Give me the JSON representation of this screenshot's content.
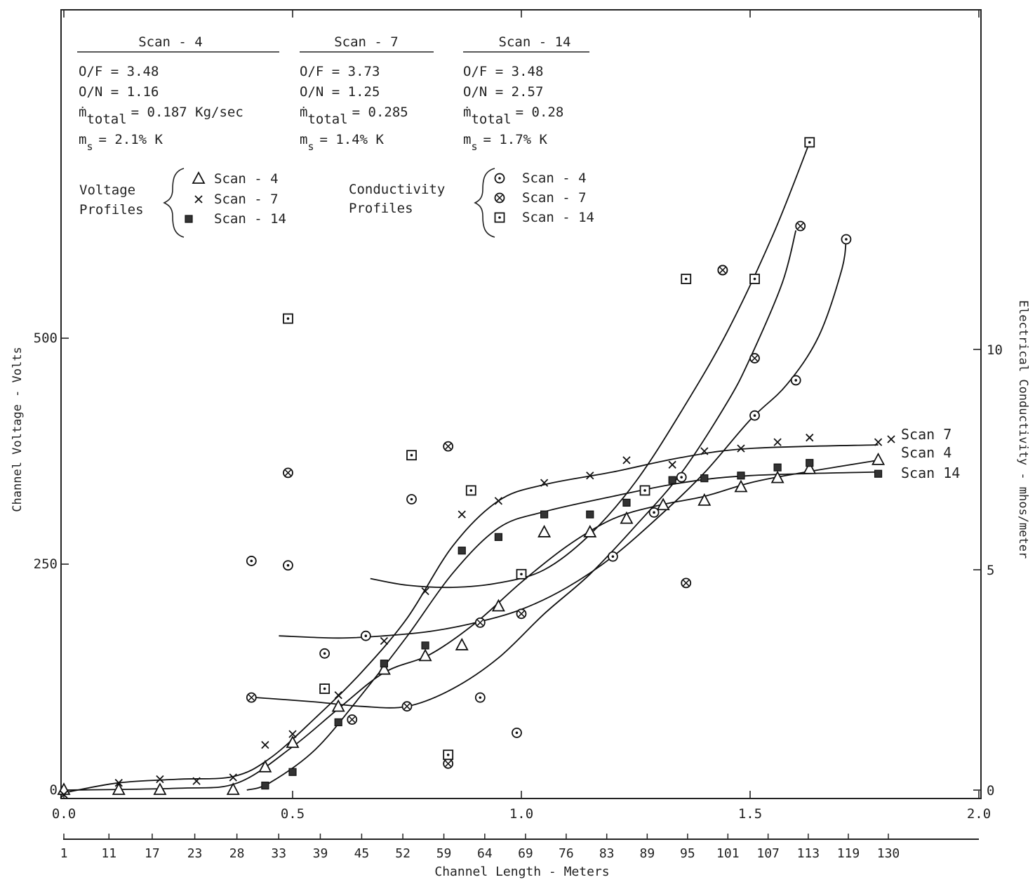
{
  "chart_data": {
    "type": "scatter",
    "xlabel": "Channel Length - Meters",
    "ylabel_left": "Channel Voltage - Volts",
    "ylabel_right": "Electrical Conductivity - mhos/meter",
    "xlim": [
      0.0,
      2.0
    ],
    "ylim_left": [
      0,
      750
    ],
    "ylim_right": [
      0,
      15
    ],
    "x_ticks": [
      "0.0",
      "0.5",
      "1.0",
      "1.5",
      "2.0"
    ],
    "y_left_ticks": [
      "0",
      "250",
      "500"
    ],
    "y_right_ticks": [
      "0",
      "5",
      "10"
    ],
    "station_ticks": [
      "1",
      "11",
      "17",
      "23",
      "28",
      "33",
      "39",
      "45",
      "52",
      "59",
      "64",
      "69",
      "76",
      "83",
      "89",
      "95",
      "101",
      "107",
      "113",
      "119",
      "130"
    ],
    "grid": false,
    "scan_info": [
      {
        "title": "Scan - 4",
        "of": "O/F = 3.48",
        "on": "O/N = 1.16",
        "mtotal_prefix": "ṁ",
        "mtotal_sub": "total",
        "mtotal_val": "= 0.187 Kg/sec",
        "ms_prefix": "m",
        "ms_sub": "s",
        "ms_val": "= 2.1% K"
      },
      {
        "title": "Scan - 7",
        "of": "O/F = 3.73",
        "on": "O/N = 1.25",
        "mtotal_prefix": "ṁ",
        "mtotal_sub": "total",
        "mtotal_val": "= 0.285",
        "ms_prefix": "m",
        "ms_sub": "s",
        "ms_val": "= 1.4% K"
      },
      {
        "title": "Scan - 14",
        "of": "O/F = 3.48",
        "on": "O/N = 2.57",
        "mtotal_prefix": "ṁ",
        "mtotal_sub": "total",
        "mtotal_val": "= 0.28",
        "ms_prefix": "m",
        "ms_sub": "s",
        "ms_val": "= 1.7% K"
      }
    ],
    "legend_voltage": {
      "label1": "Voltage",
      "label2": "Profiles",
      "entries": [
        "Scan - 4",
        "Scan - 7",
        "Scan - 14"
      ]
    },
    "legend_conductivity": {
      "label1": "Conductivity",
      "label2": "Profiles",
      "entries": [
        "Scan - 4",
        "Scan - 7",
        "Scan - 14"
      ]
    },
    "curve_labels": [
      "Scan 7",
      "Scan 4",
      "Scan 14"
    ],
    "series": [
      {
        "name": "Scan - 4",
        "kind": "voltage",
        "axis": "left",
        "marker": "triangle",
        "points": [
          [
            0.0,
            0
          ],
          [
            0.12,
            0
          ],
          [
            0.21,
            0
          ],
          [
            0.37,
            0
          ],
          [
            0.44,
            25
          ],
          [
            0.5,
            52
          ],
          [
            0.6,
            92
          ],
          [
            0.7,
            133
          ],
          [
            0.79,
            148
          ],
          [
            0.87,
            160
          ],
          [
            0.95,
            203
          ],
          [
            1.05,
            285
          ],
          [
            1.15,
            285
          ],
          [
            1.23,
            300
          ],
          [
            1.31,
            315
          ],
          [
            1.4,
            320
          ],
          [
            1.48,
            335
          ],
          [
            1.56,
            345
          ],
          [
            1.63,
            355
          ],
          [
            1.78,
            365
          ]
        ],
        "curve": [
          [
            0.0,
            0
          ],
          [
            0.25,
            2
          ],
          [
            0.38,
            8
          ],
          [
            0.5,
            48
          ],
          [
            0.6,
            90
          ],
          [
            0.7,
            130
          ],
          [
            0.8,
            150
          ],
          [
            0.9,
            185
          ],
          [
            1.0,
            230
          ],
          [
            1.1,
            270
          ],
          [
            1.2,
            300
          ],
          [
            1.3,
            315
          ],
          [
            1.4,
            325
          ],
          [
            1.5,
            340
          ],
          [
            1.6,
            350
          ],
          [
            1.78,
            365
          ]
        ]
      },
      {
        "name": "Scan - 7",
        "kind": "voltage",
        "axis": "left",
        "marker": "x",
        "points": [
          [
            0.0,
            -5
          ],
          [
            0.12,
            8
          ],
          [
            0.21,
            12
          ],
          [
            0.29,
            10
          ],
          [
            0.37,
            14
          ],
          [
            0.44,
            50
          ],
          [
            0.5,
            62
          ],
          [
            0.6,
            105
          ],
          [
            0.7,
            165
          ],
          [
            0.79,
            220
          ],
          [
            0.87,
            305
          ],
          [
            0.95,
            320
          ],
          [
            1.05,
            340
          ],
          [
            1.15,
            348
          ],
          [
            1.23,
            365
          ],
          [
            1.33,
            360
          ],
          [
            1.4,
            375
          ],
          [
            1.48,
            378
          ],
          [
            1.56,
            385
          ],
          [
            1.63,
            390
          ],
          [
            1.78,
            385
          ]
        ],
        "curve": [
          [
            0.0,
            -3
          ],
          [
            0.12,
            8
          ],
          [
            0.25,
            12
          ],
          [
            0.37,
            15
          ],
          [
            0.45,
            35
          ],
          [
            0.55,
            80
          ],
          [
            0.65,
            130
          ],
          [
            0.75,
            190
          ],
          [
            0.85,
            270
          ],
          [
            0.95,
            320
          ],
          [
            1.05,
            338
          ],
          [
            1.2,
            352
          ],
          [
            1.35,
            368
          ],
          [
            1.5,
            378
          ],
          [
            1.78,
            382
          ]
        ]
      },
      {
        "name": "Scan - 14",
        "kind": "voltage",
        "axis": "left",
        "marker": "square",
        "points": [
          [
            0.44,
            5
          ],
          [
            0.5,
            20
          ],
          [
            0.6,
            75
          ],
          [
            0.7,
            140
          ],
          [
            0.79,
            160
          ],
          [
            0.87,
            265
          ],
          [
            0.95,
            280
          ],
          [
            1.05,
            305
          ],
          [
            1.15,
            305
          ],
          [
            1.23,
            318
          ],
          [
            1.33,
            343
          ],
          [
            1.4,
            345
          ],
          [
            1.48,
            348
          ],
          [
            1.56,
            357
          ],
          [
            1.63,
            362
          ],
          [
            1.78,
            350
          ]
        ],
        "curve": [
          [
            0.4,
            0
          ],
          [
            0.45,
            8
          ],
          [
            0.55,
            45
          ],
          [
            0.65,
            105
          ],
          [
            0.75,
            170
          ],
          [
            0.85,
            240
          ],
          [
            0.95,
            290
          ],
          [
            1.05,
            308
          ],
          [
            1.2,
            325
          ],
          [
            1.35,
            340
          ],
          [
            1.5,
            348
          ],
          [
            1.78,
            352
          ]
        ]
      },
      {
        "name": "Scan - 4",
        "kind": "conductivity",
        "axis": "right",
        "marker": "circle-dot",
        "points": [
          [
            0.41,
            5.2
          ],
          [
            0.49,
            5.1
          ],
          [
            0.57,
            3.1
          ],
          [
            0.66,
            3.5
          ],
          [
            0.76,
            6.6
          ],
          [
            0.91,
            2.1
          ],
          [
            0.99,
            1.3
          ],
          [
            1.2,
            5.3
          ],
          [
            1.29,
            6.3
          ],
          [
            1.35,
            7.1
          ],
          [
            1.44,
            11.8
          ],
          [
            1.51,
            8.5
          ],
          [
            1.6,
            9.3
          ],
          [
            1.71,
            12.5
          ]
        ],
        "curve": [
          [
            0.47,
            3.5
          ],
          [
            0.6,
            3.45
          ],
          [
            0.7,
            3.5
          ],
          [
            0.8,
            3.6
          ],
          [
            0.9,
            3.8
          ],
          [
            1.0,
            4.1
          ],
          [
            1.1,
            4.6
          ],
          [
            1.2,
            5.3
          ],
          [
            1.3,
            6.2
          ],
          [
            1.4,
            7.2
          ],
          [
            1.5,
            8.4
          ],
          [
            1.58,
            9.2
          ],
          [
            1.65,
            10.3
          ],
          [
            1.7,
            11.8
          ],
          [
            1.71,
            12.5
          ]
        ]
      },
      {
        "name": "Scan - 7",
        "kind": "conductivity",
        "axis": "right",
        "marker": "circle-x",
        "points": [
          [
            0.41,
            2.1
          ],
          [
            0.49,
            7.2
          ],
          [
            0.57,
            2.3
          ],
          [
            0.63,
            1.6
          ],
          [
            0.75,
            1.9
          ],
          [
            0.84,
            0.6
          ],
          [
            0.84,
            7.8
          ],
          [
            0.91,
            3.8
          ],
          [
            1.0,
            4.0
          ],
          [
            1.36,
            4.7
          ],
          [
            1.44,
            11.8
          ],
          [
            1.51,
            9.8
          ],
          [
            1.61,
            12.8
          ]
        ],
        "curve": [
          [
            0.42,
            2.1
          ],
          [
            0.55,
            2.0
          ],
          [
            0.65,
            1.9
          ],
          [
            0.75,
            1.9
          ],
          [
            0.85,
            2.3
          ],
          [
            0.95,
            3.0
          ],
          [
            1.05,
            4.0
          ],
          [
            1.15,
            4.9
          ],
          [
            1.25,
            6.0
          ],
          [
            1.35,
            7.2
          ],
          [
            1.45,
            8.8
          ],
          [
            1.5,
            9.8
          ],
          [
            1.57,
            11.5
          ],
          [
            1.6,
            12.7
          ]
        ]
      },
      {
        "name": "Scan - 14",
        "kind": "conductivity",
        "axis": "right",
        "marker": "square-dot",
        "points": [
          [
            0.49,
            10.7
          ],
          [
            0.57,
            2.3
          ],
          [
            0.76,
            7.6
          ],
          [
            0.84,
            0.8
          ],
          [
            0.89,
            6.8
          ],
          [
            1.0,
            4.9
          ],
          [
            1.27,
            6.8
          ],
          [
            1.36,
            11.6
          ],
          [
            1.51,
            11.6
          ],
          [
            1.63,
            14.7
          ]
        ],
        "curve": [
          [
            0.67,
            4.8
          ],
          [
            0.75,
            4.65
          ],
          [
            0.85,
            4.6
          ],
          [
            0.95,
            4.7
          ],
          [
            1.05,
            5.0
          ],
          [
            1.15,
            5.8
          ],
          [
            1.25,
            7.0
          ],
          [
            1.35,
            8.6
          ],
          [
            1.45,
            10.4
          ],
          [
            1.55,
            12.6
          ],
          [
            1.63,
            14.7
          ]
        ]
      }
    ]
  }
}
